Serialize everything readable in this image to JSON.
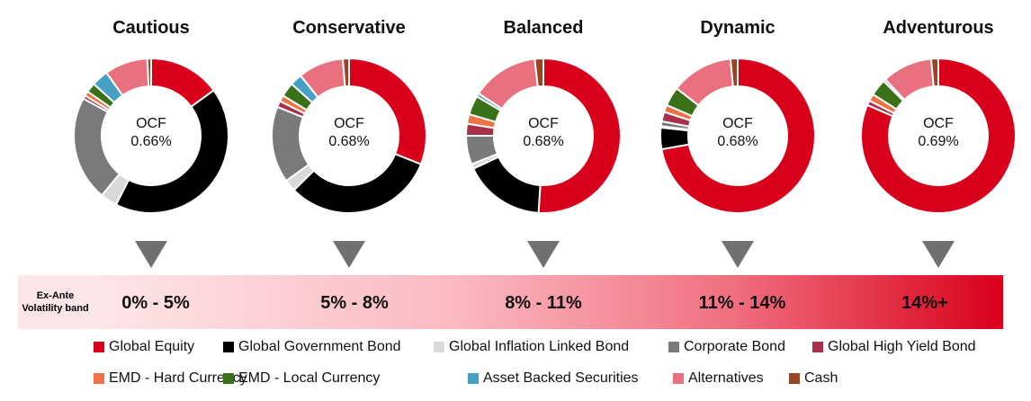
{
  "chart_data": {
    "type": "pie",
    "categories": [
      "Global  Equity",
      "Global Government Bond",
      "Global Inflation Linked Bond",
      "Corporate Bond",
      "Global High Yield Bond",
      "EMD - Hard Currency",
      "EMD - Local Currency",
      "Asset Backed Securities",
      "Alternatives",
      "Cash"
    ],
    "colors": [
      "#d9001b",
      "#000000",
      "#d9d9d9",
      "#7a7a7a",
      "#a8304a",
      "#ef7246",
      "#3a7018",
      "#46a0c4",
      "#e8707f",
      "#9a4422"
    ],
    "charts": [
      {
        "title": "Cautious",
        "center_label": "OCF",
        "center_value": "0.66%",
        "values": [
          15,
          42.5,
          3.5,
          22,
          0.7,
          1,
          2,
          3.5,
          9,
          0.8
        ]
      },
      {
        "title": "Conservative",
        "center_label": "OCF",
        "center_value": "0.68%",
        "values": [
          31,
          31.6,
          2.5,
          16,
          1.3,
          1.3,
          3,
          2.5,
          9.5,
          1.3
        ]
      },
      {
        "title": "Balanced",
        "center_label": "OCF",
        "center_value": "0.68%",
        "values": [
          51,
          17,
          1,
          6,
          2.5,
          2,
          4,
          0.7,
          14,
          1.8
        ]
      },
      {
        "title": "Dynamic",
        "center_label": "OCF",
        "center_value": "0.68%",
        "values": [
          72.2,
          4.5,
          0.3,
          1,
          2,
          1.5,
          4,
          0,
          13,
          1.5
        ]
      },
      {
        "title": "Adventurous",
        "center_label": "OCF",
        "center_value": "0.69%",
        "values": [
          81.5,
          0,
          0,
          0,
          1,
          1.5,
          3.5,
          0.5,
          10.5,
          1.5
        ]
      }
    ]
  },
  "band": {
    "label": "Ex-Ante Volatility band",
    "values": [
      "0% - 5%",
      "5% - 8%",
      "8% - 11%",
      "11% - 14%",
      "14%+"
    ]
  }
}
